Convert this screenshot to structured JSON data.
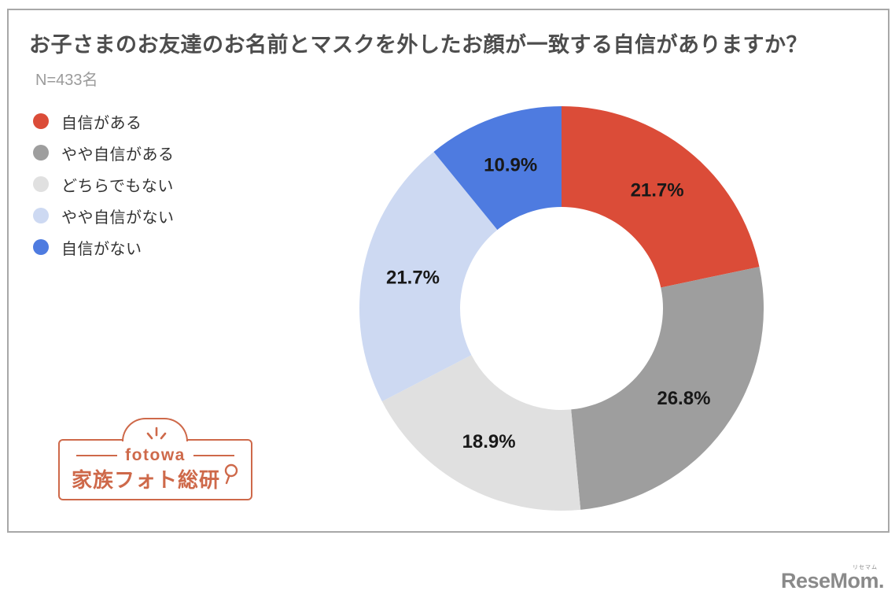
{
  "header": {
    "title": "お子さまのお友達のお名前とマスクを外したお顔が一致する自信がありますか？",
    "sample_size": "N=433名"
  },
  "chart_data": {
    "type": "pie",
    "subtype": "donut",
    "title": "お子さまのお友達のお名前とマスクを外したお顔が一致する自信がありますか？",
    "sample_note": "N=433名",
    "categories": [
      "自信がある",
      "やや自信がある",
      "どちらでもない",
      "やや自信がない",
      "自信がない"
    ],
    "values": [
      21.7,
      26.8,
      18.9,
      21.7,
      10.9
    ],
    "data_labels": [
      "21.7%",
      "26.8%",
      "18.9%",
      "21.7%",
      "10.9%"
    ],
    "unit": "%",
    "colors": [
      "#DB4C38",
      "#9E9E9E",
      "#E0E0E0",
      "#CDD9F2",
      "#4E7BE0"
    ],
    "start_angle_deg": 0,
    "direction": "clockwise",
    "inner_radius_ratio": 0.5,
    "legend_position": "left",
    "label_color": "#181818"
  },
  "logos": {
    "fotowa": {
      "brand": "fotowa",
      "subtitle": "家族フォト総研",
      "color": "#CE694A"
    },
    "resemom": {
      "text": "ReseMom.",
      "ruby": "リセマム",
      "color": "#8A8A8A"
    }
  }
}
